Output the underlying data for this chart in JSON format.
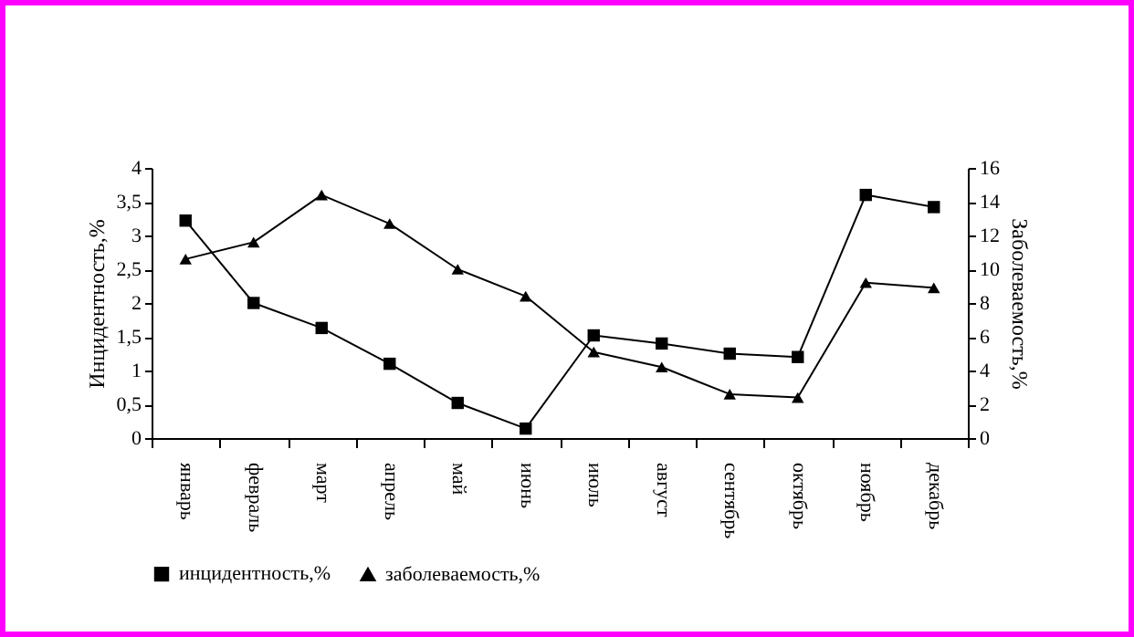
{
  "chart_data": {
    "type": "line",
    "categories": [
      "январь",
      "февраль",
      "март",
      "апрель",
      "май",
      "июнь",
      "июль",
      "август",
      "сентябрь",
      "октябрь",
      "ноябрь",
      "декабрь"
    ],
    "ylabel": "Инцидентность,%",
    "y2label": "Заболеваемость,%",
    "ylim": [
      0,
      4
    ],
    "yticks": [
      0,
      {
        "value": 0.5,
        "label": "0,5"
      },
      1,
      {
        "value": 1.5,
        "label": "1,5"
      },
      2,
      {
        "value": 2.5,
        "label": "2,5"
      },
      3,
      {
        "value": 3.5,
        "label": "3,5"
      },
      4
    ],
    "y2lim": [
      0,
      16
    ],
    "y2ticks": [
      0,
      2,
      4,
      6,
      8,
      10,
      12,
      14,
      16
    ],
    "series": [
      {
        "name": "инцидентность,%",
        "color": "#000000",
        "marker": "square",
        "values": [
          3.22,
          2.0,
          1.63,
          1.1,
          0.52,
          0.14,
          1.52,
          1.4,
          1.25,
          1.2,
          3.6,
          3.42
        ]
      },
      {
        "name": "заболеваемость,%",
        "color": "#000000",
        "marker": "triangle",
        "axis": "y2",
        "values": [
          10.6,
          11.6,
          14.4,
          12.7,
          10.0,
          8.4,
          5.1,
          4.2,
          2.6,
          2.4,
          9.2,
          8.9
        ]
      }
    ],
    "legend": "bottom",
    "grid": false
  }
}
